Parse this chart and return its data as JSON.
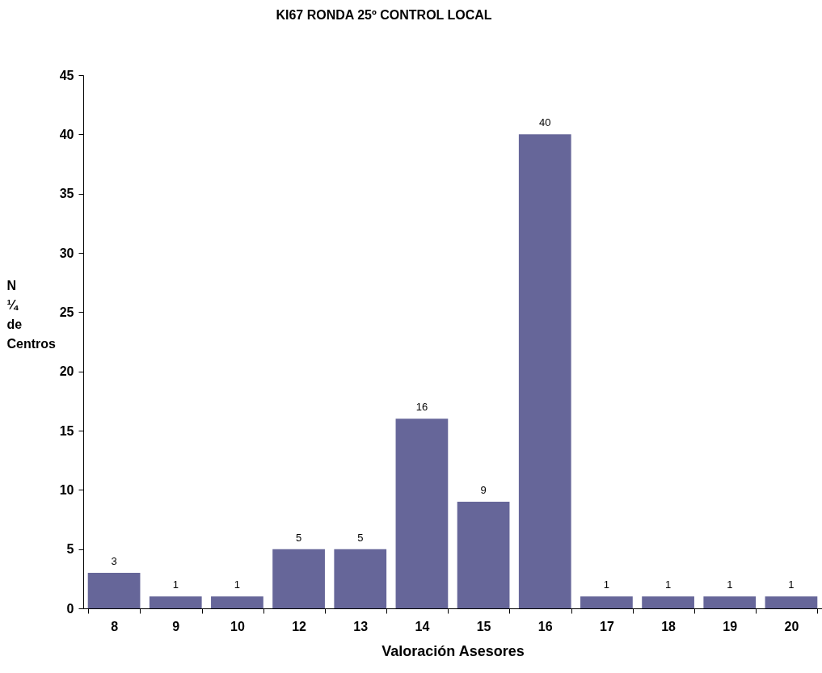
{
  "chart_data": {
    "type": "bar",
    "title": "KI67 RONDA 25º CONTROL LOCAL",
    "xlabel": "Valoración Asesores",
    "ylabel": "N ¼ de Centros",
    "categories": [
      "8",
      "9",
      "10",
      "12",
      "13",
      "14",
      "15",
      "16",
      "17",
      "18",
      "19",
      "20"
    ],
    "values": [
      3,
      1,
      1,
      5,
      5,
      16,
      9,
      40,
      1,
      1,
      1,
      1
    ],
    "color": "#666699",
    "ylim": [
      0,
      45
    ],
    "yticks": [
      0,
      5,
      10,
      15,
      20,
      25,
      30,
      35,
      40,
      45
    ],
    "grid": false,
    "data_labels": true
  }
}
